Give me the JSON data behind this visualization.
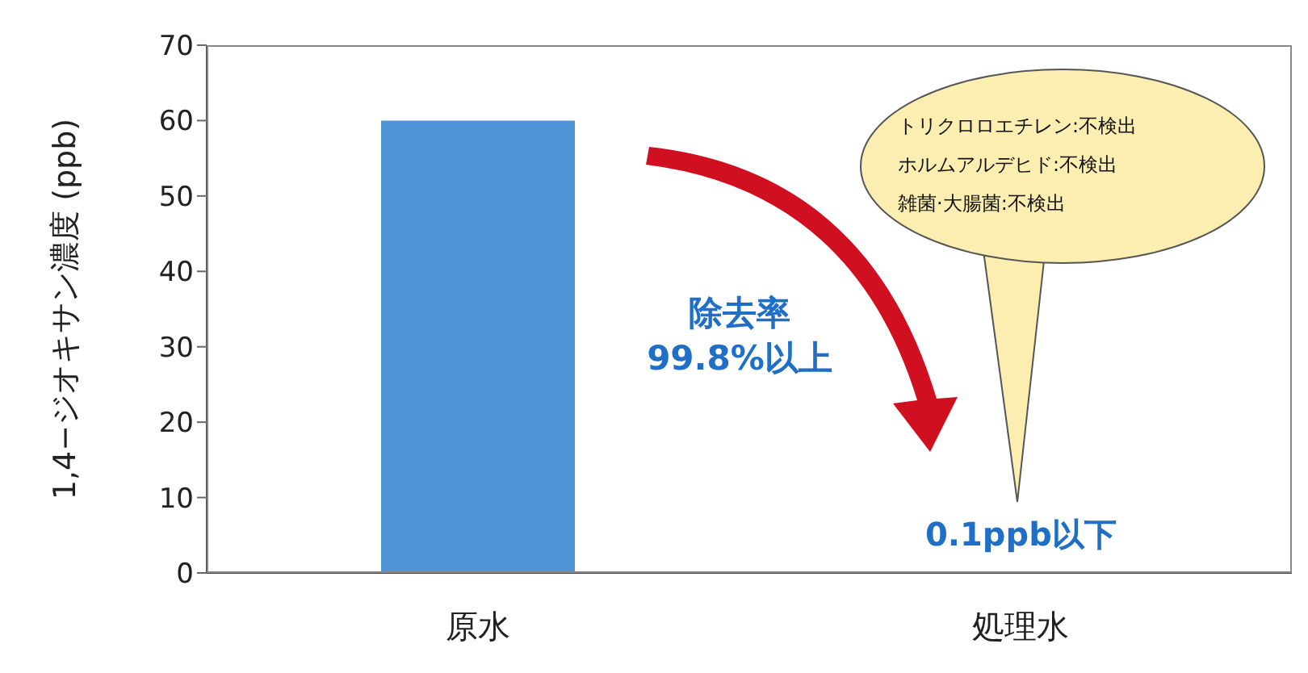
{
  "chart_data": {
    "type": "bar",
    "ylabel": "1,4−ジオキサン濃度 (ppb)",
    "categories": [
      "原水",
      "処理水"
    ],
    "values": [
      60,
      0.1
    ],
    "colors": [
      "#4f94d4",
      "#1c3f86"
    ],
    "ylim": [
      0,
      70
    ],
    "yticks": [
      0,
      10,
      20,
      30,
      40,
      50,
      60,
      70
    ],
    "annotations": [
      "除去率\n99.8%以上",
      "0.1ppb以下",
      "トリクロロエチレン:不検出",
      "ホルムアルデヒド:不検出",
      "雑菌·大腸菌:不検出"
    ]
  }
}
